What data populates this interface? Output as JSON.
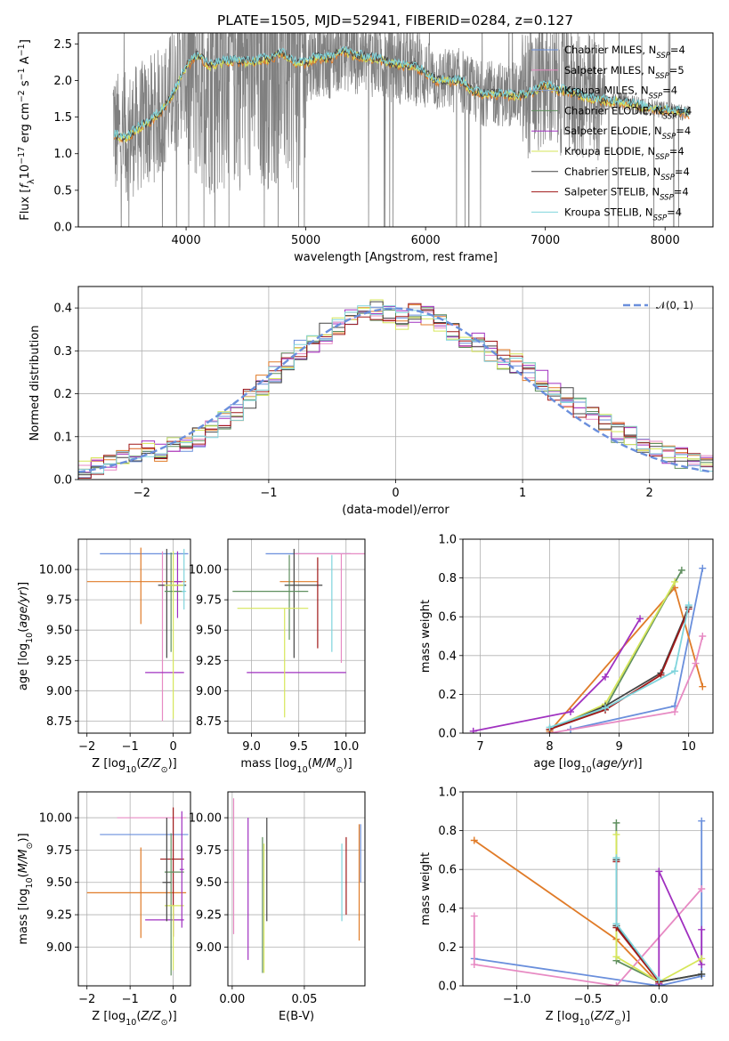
{
  "figure": {
    "title": "PLATE=1505, MJD=52941, FIBERID=0284, z=0.127"
  },
  "colors": {
    "chabrier_miles": "#6a8fdc",
    "salpeter_miles": "#e78ac3",
    "kroupa_miles": "#8da0cb",
    "chabrier_elodie": "#5f8f5f",
    "salpeter_elodie": "#a030c0",
    "kroupa_elodie": "#d6e65a",
    "chabrier_stelib": "#444444",
    "salpeter_stelib": "#a01818",
    "kroupa_stelib": "#7fd4dc",
    "orange_model": "#e07b28",
    "data": "#808080",
    "gauss": "#6a8fdc"
  },
  "chart_data": [
    {
      "id": "spectrum",
      "type": "line",
      "title": "PLATE=1505, MJD=52941, FIBERID=0284, z=0.127",
      "xlabel": "wavelength [Angstrom, rest frame]",
      "ylabel": "Flux [fλ10⁻¹⁷ erg cm⁻² s⁻¹ A⁻¹]",
      "xlim": [
        3100,
        8400
      ],
      "ylim": [
        0,
        2.65
      ],
      "xticks": [
        4000,
        5000,
        6000,
        7000,
        8000
      ],
      "yticks": [
        0.0,
        0.5,
        1.0,
        1.5,
        2.0,
        2.5
      ],
      "grid": false,
      "legend_position": "upper-right",
      "legend": [
        {
          "sub": "Chabrier MILES, N",
          "ssp": "SSP",
          "tail": "=4",
          "color": "#6a8fdc"
        },
        {
          "sub": "Salpeter MILES, N",
          "ssp": "SSP",
          "tail": "=5",
          "color": "#e78ac3"
        },
        {
          "sub": "Kroupa MILES, N",
          "ssp": "SSP",
          "tail": "=4",
          "color": "#8da0cb"
        },
        {
          "sub": "Chabrier ELODIE, N",
          "ssp": "SSP",
          "tail": "=4",
          "color": "#5f8f5f"
        },
        {
          "sub": "Salpeter ELODIE, N",
          "ssp": "SSP",
          "tail": "=4",
          "color": "#a030c0"
        },
        {
          "sub": "Kroupa ELODIE, N",
          "ssp": "SSP",
          "tail": "=4",
          "color": "#d6e65a"
        },
        {
          "sub": "Chabrier STELIB, N",
          "ssp": "SSP",
          "tail": "=4",
          "color": "#444444"
        },
        {
          "sub": "Salpeter STELIB, N",
          "ssp": "SSP",
          "tail": "=4",
          "color": "#a01818"
        },
        {
          "sub": "Kroupa STELIB, N",
          "ssp": "SSP",
          "tail": "=4",
          "color": "#7fd4dc"
        }
      ],
      "model_continuum": {
        "x": [
          3400,
          3500,
          3600,
          3700,
          3800,
          3900,
          4000,
          4100,
          4200,
          4300,
          4400,
          4500,
          4600,
          4700,
          4800,
          4900,
          5000,
          5100,
          5200,
          5300,
          5400,
          5500,
          5600,
          5700,
          5800,
          5900,
          6000,
          6100,
          6200,
          6300,
          6400,
          6500,
          6600,
          6700,
          6800,
          6900,
          7000,
          7100,
          7200,
          7300,
          7400,
          7500,
          7600,
          7700,
          7800,
          7900,
          8000,
          8100,
          8200
        ],
        "y": [
          1.25,
          1.22,
          1.35,
          1.45,
          1.6,
          1.85,
          2.2,
          2.35,
          2.2,
          2.25,
          2.28,
          2.25,
          2.28,
          2.3,
          2.38,
          2.25,
          2.25,
          2.32,
          2.3,
          2.42,
          2.35,
          2.32,
          2.3,
          2.25,
          2.2,
          2.22,
          2.1,
          2.0,
          2.0,
          2.0,
          1.85,
          1.82,
          1.82,
          1.8,
          1.8,
          1.85,
          1.95,
          1.88,
          1.85,
          1.8,
          1.75,
          1.72,
          1.72,
          1.7,
          1.65,
          1.62,
          1.6,
          1.58,
          1.55
        ]
      }
    },
    {
      "id": "residuals",
      "type": "histogram",
      "xlabel": "(data-model)/error",
      "ylabel": "Normed distribution",
      "xlim": [
        -2.5,
        2.5
      ],
      "ylim": [
        0,
        0.45
      ],
      "xticks": [
        -2,
        -1,
        0,
        1,
        2
      ],
      "yticks": [
        0.0,
        0.1,
        0.2,
        0.3,
        0.4
      ],
      "grid": true,
      "legend_position": "upper-right",
      "legend": [
        {
          "label": "𝒩(0, 1)",
          "color": "#6a8fdc",
          "dashed": true
        }
      ],
      "bin_width": 0.1,
      "bin_start": -2.5,
      "approx_values": [
        0.02,
        0.03,
        0.04,
        0.05,
        0.06,
        0.07,
        0.065,
        0.08,
        0.09,
        0.1,
        0.12,
        0.14,
        0.16,
        0.19,
        0.22,
        0.25,
        0.28,
        0.3,
        0.32,
        0.34,
        0.36,
        0.38,
        0.4,
        0.395,
        0.38,
        0.37,
        0.39,
        0.38,
        0.36,
        0.34,
        0.33,
        0.32,
        0.3,
        0.28,
        0.27,
        0.25,
        0.23,
        0.21,
        0.19,
        0.17,
        0.15,
        0.13,
        0.11,
        0.1,
        0.085,
        0.07,
        0.06,
        0.05,
        0.045,
        0.04
      ]
    },
    {
      "id": "age_vs_Z",
      "type": "errorbar",
      "xlabel": "Z [log10(Z/Z⊙)]",
      "ylabel": "age  [log10(age/yr)]",
      "xlim": [
        -2.2,
        0.4
      ],
      "ylim": [
        8.65,
        10.25
      ],
      "xticks": [
        -2,
        -1,
        0
      ],
      "yticks": [
        8.75,
        9.0,
        9.25,
        9.5,
        9.75,
        10.0
      ],
      "grid": true,
      "points": [
        {
          "x": -0.35,
          "xerr": [
            1.35,
            0.7
          ],
          "y": 10.13,
          "yerr": [
            0.0,
            0.0
          ],
          "color": "#6a8fdc"
        },
        {
          "x": -0.75,
          "xerr": [
            1.25,
            1.05
          ],
          "y": 9.9,
          "yerr": [
            0.35,
            0.28
          ],
          "color": "#e07b28"
        },
        {
          "x": -0.25,
          "xerr": [
            0.0,
            0.0
          ],
          "y": 9.75,
          "yerr": [
            1.0,
            0.4
          ],
          "color": "#e78ac3"
        },
        {
          "x": 0.1,
          "xerr": [
            0.1,
            0.1
          ],
          "y": 9.9,
          "yerr": [
            0.3,
            0.25
          ],
          "color": "#a030c0"
        },
        {
          "x": -0.2,
          "xerr": [
            0.45,
            0.45
          ],
          "y": 9.15,
          "yerr": [
            0.0,
            0.0
          ],
          "color": "#a030c0"
        },
        {
          "x": -0.15,
          "xerr": [
            0.2,
            0.45
          ],
          "y": 9.87,
          "yerr": [
            0.6,
            0.3
          ],
          "color": "#444444"
        },
        {
          "x": -0.05,
          "xerr": [
            0.15,
            0.3
          ],
          "y": 9.82,
          "yerr": [
            0.5,
            0.32
          ],
          "color": "#5f8f5f"
        },
        {
          "x": 0.0,
          "xerr": [
            0.2,
            0.25
          ],
          "y": 9.87,
          "yerr": [
            1.1,
            0.28
          ],
          "color": "#d6e65a"
        },
        {
          "x": 0.25,
          "xerr": [
            0.05,
            0.05
          ],
          "y": 9.82,
          "yerr": [
            0.15,
            0.35
          ],
          "color": "#7fd4dc"
        }
      ]
    },
    {
      "id": "age_vs_mass",
      "type": "errorbar",
      "xlabel": "mass [log10(M/M⊙)]",
      "xlim": [
        8.75,
        10.2
      ],
      "ylim": [
        8.65,
        10.25
      ],
      "xticks": [
        9.0,
        9.5,
        10.0
      ],
      "yticks": [
        8.75,
        9.0,
        9.25,
        9.5,
        9.75,
        10.0
      ],
      "grid": true,
      "points": [
        {
          "x": 9.6,
          "xerr": [
            0.45,
            0.45
          ],
          "y": 10.13,
          "yerr": [
            0.0,
            0.0
          ],
          "color": "#6a8fdc"
        },
        {
          "x": 9.5,
          "xerr": [
            0.2,
            0.2
          ],
          "y": 9.9,
          "yerr": [
            0.0,
            0.0
          ],
          "color": "#e07b28"
        },
        {
          "x": 9.95,
          "xerr": [
            0.5,
            0.25
          ],
          "y": 10.13,
          "yerr": [
            0.9,
            0.0
          ],
          "color": "#e78ac3"
        },
        {
          "x": 9.55,
          "xerr": [
            0.6,
            0.45
          ],
          "y": 9.15,
          "yerr": [
            0.0,
            0.0
          ],
          "color": "#a030c0"
        },
        {
          "x": 9.45,
          "xerr": [
            0.1,
            0.3
          ],
          "y": 9.87,
          "yerr": [
            0.6,
            0.3
          ],
          "color": "#444444"
        },
        {
          "x": 9.4,
          "xerr": [
            0.6,
            0.2
          ],
          "y": 9.82,
          "yerr": [
            0.4,
            0.3
          ],
          "color": "#5f8f5f"
        },
        {
          "x": 9.35,
          "xerr": [
            0.5,
            0.25
          ],
          "y": 9.68,
          "yerr": [
            0.9,
            0.0
          ],
          "color": "#d6e65a"
        },
        {
          "x": 9.85,
          "xerr": [
            0.0,
            0.0
          ],
          "y": 9.82,
          "yerr": [
            0.5,
            0.3
          ],
          "color": "#7fd4dc"
        },
        {
          "x": 9.7,
          "xerr": [
            0.0,
            0.0
          ],
          "y": 9.85,
          "yerr": [
            0.5,
            0.25
          ],
          "color": "#a01818"
        }
      ]
    },
    {
      "id": "mass_weight_vs_age",
      "type": "line",
      "xlabel": "age  [log10(age/yr)]",
      "ylabel": "mass weight",
      "xlim": [
        6.75,
        10.35
      ],
      "ylim": [
        0,
        1.0
      ],
      "xticks": [
        7,
        8,
        9,
        10
      ],
      "yticks": [
        0.0,
        0.2,
        0.4,
        0.6,
        0.8,
        1.0
      ],
      "grid": true,
      "series": [
        {
          "color": "#6a8fdc",
          "x": [
            8.3,
            9.8,
            10.2
          ],
          "y": [
            0.02,
            0.14,
            0.85
          ]
        },
        {
          "color": "#e07b28",
          "x": [
            8.0,
            9.8,
            10.2
          ],
          "y": [
            0.01,
            0.75,
            0.24
          ]
        },
        {
          "color": "#e78ac3",
          "x": [
            8.0,
            9.8,
            10.1,
            10.2
          ],
          "y": [
            0.0,
            0.11,
            0.36,
            0.5
          ]
        },
        {
          "color": "#a030c0",
          "x": [
            6.9,
            8.3,
            8.8,
            9.3
          ],
          "y": [
            0.01,
            0.11,
            0.29,
            0.59
          ]
        },
        {
          "color": "#5f8f5f",
          "x": [
            8.0,
            8.8,
            9.9
          ],
          "y": [
            0.02,
            0.13,
            0.84
          ]
        },
        {
          "color": "#d6e65a",
          "x": [
            8.0,
            8.8,
            9.8
          ],
          "y": [
            0.02,
            0.15,
            0.78
          ]
        },
        {
          "color": "#444444",
          "x": [
            8.0,
            8.8,
            9.6,
            10.0
          ],
          "y": [
            0.02,
            0.14,
            0.31,
            0.65
          ]
        },
        {
          "color": "#a01818",
          "x": [
            8.0,
            8.8,
            9.6,
            10.0
          ],
          "y": [
            0.02,
            0.12,
            0.3,
            0.64
          ]
        },
        {
          "color": "#7fd4dc",
          "x": [
            8.0,
            8.8,
            9.8,
            10.0
          ],
          "y": [
            0.03,
            0.13,
            0.32,
            0.66
          ]
        }
      ]
    },
    {
      "id": "mass_vs_Z",
      "type": "errorbar",
      "xlabel": "Z [log10(Z/Z⊙)]",
      "ylabel": "mass [log10(M/M⊙)]",
      "xlim": [
        -2.2,
        0.4
      ],
      "ylim": [
        8.7,
        10.2
      ],
      "xticks": [
        -2,
        -1,
        0
      ],
      "yticks": [
        9.0,
        9.25,
        9.5,
        9.75,
        10.0
      ],
      "grid": true,
      "points": [
        {
          "x": -0.35,
          "xerr": [
            1.35,
            0.7
          ],
          "y": 9.87,
          "yerr": [
            0.0,
            0.0
          ],
          "color": "#6a8fdc"
        },
        {
          "x": -0.75,
          "xerr": [
            1.25,
            1.05
          ],
          "y": 9.42,
          "yerr": [
            0.35,
            0.35
          ],
          "color": "#e07b28"
        },
        {
          "x": -0.3,
          "xerr": [
            1.0,
            0.6
          ],
          "y": 10.0,
          "yerr": [
            0.0,
            0.0
          ],
          "color": "#e78ac3"
        },
        {
          "x": -0.2,
          "xerr": [
            0.45,
            0.45
          ],
          "y": 9.21,
          "yerr": [
            0.0,
            0.0
          ],
          "color": "#a030c0"
        },
        {
          "x": 0.0,
          "xerr": [
            0.3,
            0.25
          ],
          "y": 9.68,
          "yerr": [
            0.6,
            0.4
          ],
          "color": "#a01818"
        },
        {
          "x": -0.05,
          "xerr": [
            0.15,
            0.3
          ],
          "y": 9.58,
          "yerr": [
            0.8,
            0.3
          ],
          "color": "#5f8f5f"
        },
        {
          "x": 0.0,
          "xerr": [
            0.2,
            0.25
          ],
          "y": 9.32,
          "yerr": [
            0.5,
            0.0
          ],
          "color": "#d6e65a"
        },
        {
          "x": 0.2,
          "xerr": [
            0.05,
            0.05
          ],
          "y": 9.6,
          "yerr": [
            0.45,
            0.45
          ],
          "color": "#a030c0"
        },
        {
          "x": -0.15,
          "xerr": [
            0.1,
            0.1
          ],
          "y": 9.5,
          "yerr": [
            0.3,
            0.5
          ],
          "color": "#444444"
        }
      ]
    },
    {
      "id": "mass_vs_EBV",
      "type": "errorbar",
      "xlabel": "E(B-V)",
      "xlim": [
        -0.003,
        0.092
      ],
      "ylim": [
        8.7,
        10.2
      ],
      "xticks": [
        0.0,
        0.05
      ],
      "yticks": [
        9.0,
        9.25,
        9.5,
        9.75,
        10.0
      ],
      "grid": true,
      "points": [
        {
          "x": 0.001,
          "y": 9.7,
          "yerr": [
            0.6,
            0.45
          ],
          "color": "#e78ac3"
        },
        {
          "x": 0.011,
          "y": 9.45,
          "yerr": [
            0.55,
            0.55
          ],
          "color": "#a030c0"
        },
        {
          "x": 0.021,
          "y": 9.3,
          "yerr": [
            0.5,
            0.55
          ],
          "color": "#5f8f5f"
        },
        {
          "x": 0.022,
          "y": 9.3,
          "yerr": [
            0.5,
            0.5
          ],
          "color": "#d6e65a"
        },
        {
          "x": 0.024,
          "y": 9.6,
          "yerr": [
            0.4,
            0.4
          ],
          "color": "#444444"
        },
        {
          "x": 0.076,
          "y": 9.5,
          "yerr": [
            0.3,
            0.3
          ],
          "color": "#7fd4dc"
        },
        {
          "x": 0.079,
          "y": 9.55,
          "yerr": [
            0.3,
            0.3
          ],
          "color": "#a01818"
        },
        {
          "x": 0.088,
          "y": 9.45,
          "yerr": [
            0.4,
            0.5
          ],
          "color": "#e07b28"
        },
        {
          "x": 0.089,
          "y": 9.6,
          "yerr": [
            0.1,
            0.35
          ],
          "color": "#6a8fdc"
        }
      ]
    },
    {
      "id": "mass_weight_vs_Z",
      "type": "line",
      "xlabel": "Z [log10(Z/Z⊙)]",
      "ylabel": "mass weight",
      "xlim": [
        -1.38,
        0.38
      ],
      "ylim": [
        0,
        1.0
      ],
      "xticks": [
        -1.0,
        -0.5,
        0.0
      ],
      "yticks": [
        0.0,
        0.2,
        0.4,
        0.6,
        0.8,
        1.0
      ],
      "grid": true,
      "series": [
        {
          "color": "#6a8fdc",
          "x": [
            -1.3,
            0.0,
            0.3,
            0.3
          ],
          "y": [
            0.14,
            0.0,
            0.05,
            0.85
          ]
        },
        {
          "color": "#e07b28",
          "x": [
            -1.3,
            -0.3,
            0.0
          ],
          "y": [
            0.75,
            0.24,
            0.01
          ]
        },
        {
          "color": "#e78ac3",
          "x": [
            -1.3,
            -1.3,
            -0.3,
            0.3
          ],
          "y": [
            0.36,
            0.11,
            0.0,
            0.5
          ]
        },
        {
          "color": "#a030c0",
          "x": [
            0.0,
            0.0,
            0.3,
            0.3
          ],
          "y": [
            0.01,
            0.59,
            0.11,
            0.29
          ]
        },
        {
          "color": "#5f8f5f",
          "x": [
            -0.3,
            -0.3,
            0.0,
            0.3
          ],
          "y": [
            0.84,
            0.13,
            0.02,
            0.06
          ]
        },
        {
          "color": "#d6e65a",
          "x": [
            -0.3,
            -0.3,
            0.0,
            0.3
          ],
          "y": [
            0.78,
            0.15,
            0.02,
            0.14
          ]
        },
        {
          "color": "#444444",
          "x": [
            -0.3,
            -0.3,
            0.0,
            0.3
          ],
          "y": [
            0.65,
            0.31,
            0.02,
            0.06
          ]
        },
        {
          "color": "#a01818",
          "x": [
            -0.3,
            -0.3,
            0.0
          ],
          "y": [
            0.64,
            0.3,
            0.02
          ]
        },
        {
          "color": "#7fd4dc",
          "x": [
            -0.3,
            -0.3,
            0.0
          ],
          "y": [
            0.66,
            0.32,
            0.03
          ]
        }
      ]
    }
  ]
}
